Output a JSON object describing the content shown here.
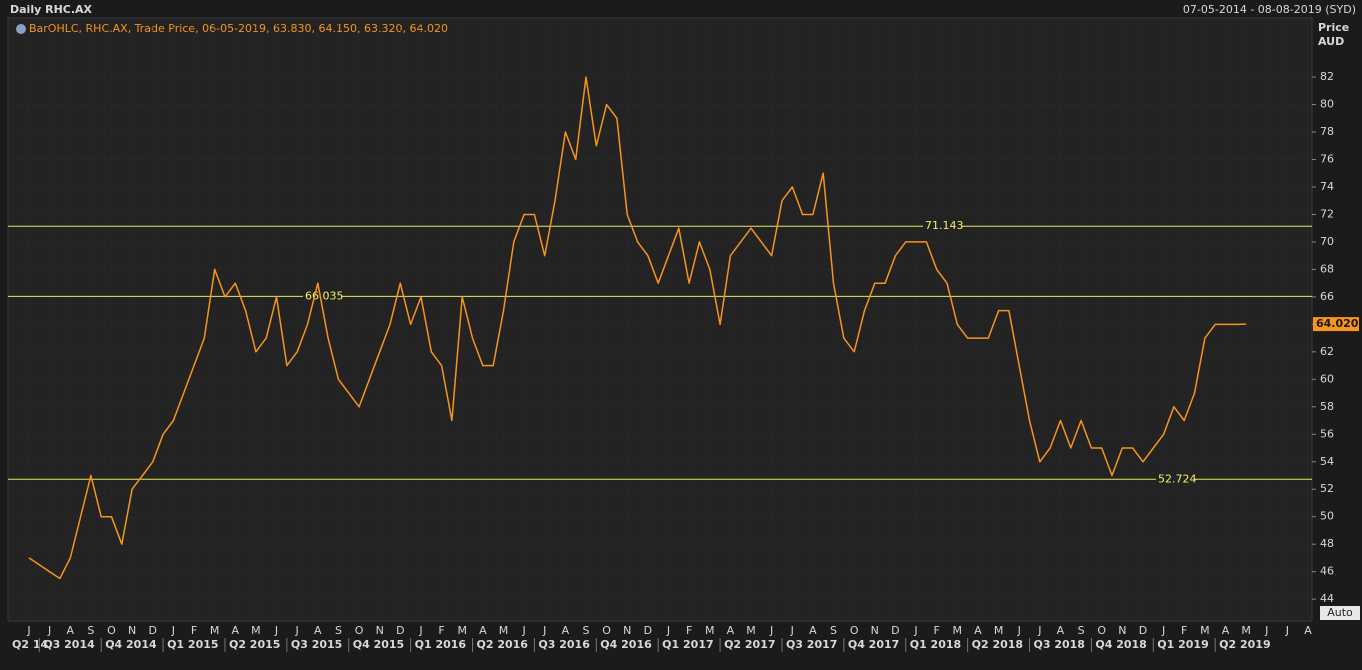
{
  "chart_data": {
    "type": "line",
    "title": "Daily RHC.AX",
    "date_range": "07-05-2014 - 08-08-2019 (SYD)",
    "y_axis_label": "Price",
    "y_axis_unit": "AUD",
    "auto_button": "Auto",
    "categories": [
      "J",
      null,
      "J",
      null,
      "A",
      null,
      "S",
      null,
      "O",
      null,
      "N",
      null,
      "D",
      null,
      "J",
      null,
      "F",
      null,
      "M",
      null,
      "A",
      null,
      "M",
      null,
      "J",
      null,
      "J",
      null,
      "A",
      null,
      "S",
      null,
      "O",
      null,
      "N",
      null,
      "D",
      null,
      "J",
      null,
      "F",
      null,
      "M",
      null,
      "A",
      null,
      "M",
      null,
      "J",
      null,
      "J",
      null,
      "A",
      null,
      "S",
      null,
      "O",
      null,
      "N",
      null,
      "D",
      null,
      "J",
      null,
      "F",
      null,
      "M",
      null,
      "A",
      null,
      "M",
      null,
      "J",
      null,
      "J",
      null,
      "A",
      null,
      "S",
      null,
      "O",
      null,
      "N",
      null,
      "D",
      null,
      "J",
      null,
      "F",
      null,
      "M",
      null,
      "A",
      null,
      "M",
      null,
      "J",
      null,
      "J",
      null,
      "A",
      null,
      "S",
      null,
      "O",
      null,
      "N",
      null,
      "D",
      null,
      "J",
      null,
      "F",
      null,
      "M",
      null,
      "A",
      null,
      "M",
      null,
      "J",
      null,
      "J",
      null,
      "A"
    ],
    "quarter_labels": [
      "Q2 14",
      "Q3 2014",
      "Q4 2014",
      "Q1 2015",
      "Q2 2015",
      "Q3 2015",
      "Q4 2015",
      "Q1 2016",
      "Q2 2016",
      "Q3 2016",
      "Q4 2016",
      "Q1 2017",
      "Q2 2017",
      "Q3 2017",
      "Q4 2017",
      "Q1 2018",
      "Q2 2018",
      "Q3 2018",
      "Q4 2018",
      "Q1 2019",
      "Q2 2019"
    ],
    "series": [
      {
        "name": "BarOHLC, RHC.AX, Trade Price, 06-05-2019, 63.830, 64.150, 63.320, 64.020",
        "color": "#f7941d",
        "values": [
          47,
          46.5,
          46,
          45.5,
          47,
          50,
          53,
          50,
          50,
          48,
          52,
          53,
          54,
          56,
          57,
          59,
          61,
          63,
          68,
          66,
          67,
          65,
          62,
          63,
          66,
          61,
          62,
          64,
          67,
          63,
          60,
          59,
          58,
          60,
          62,
          64,
          67,
          64,
          66,
          62,
          61,
          57,
          66,
          63,
          61,
          61,
          65,
          70,
          72,
          72,
          69,
          73,
          78,
          76,
          82,
          77,
          80,
          79,
          72,
          70,
          69,
          67,
          69,
          71,
          67,
          70,
          68,
          64,
          69,
          70,
          71,
          70,
          69,
          73,
          74,
          72,
          72,
          75,
          67,
          63,
          62,
          65,
          67,
          67,
          69,
          70,
          70,
          70,
          68,
          67,
          64,
          63,
          63,
          63,
          65,
          65,
          61,
          57,
          54,
          55,
          57,
          55,
          57,
          55,
          55,
          53,
          55,
          55,
          54,
          55,
          56,
          58,
          57,
          59,
          63,
          64,
          64,
          64,
          64.02,
          null,
          null,
          null,
          null,
          null,
          null
        ]
      }
    ],
    "reference_lines": [
      71.143,
      66.035,
      52.724
    ],
    "last_price": {
      "value": 64.02,
      "label": "64.020"
    },
    "ylim": [
      42.7,
      86.3
    ],
    "yticks": [
      44,
      46,
      48,
      50,
      52,
      54,
      56,
      58,
      60,
      62,
      64,
      66,
      68,
      70,
      72,
      74,
      76,
      78,
      80,
      82
    ],
    "grid": true
  }
}
